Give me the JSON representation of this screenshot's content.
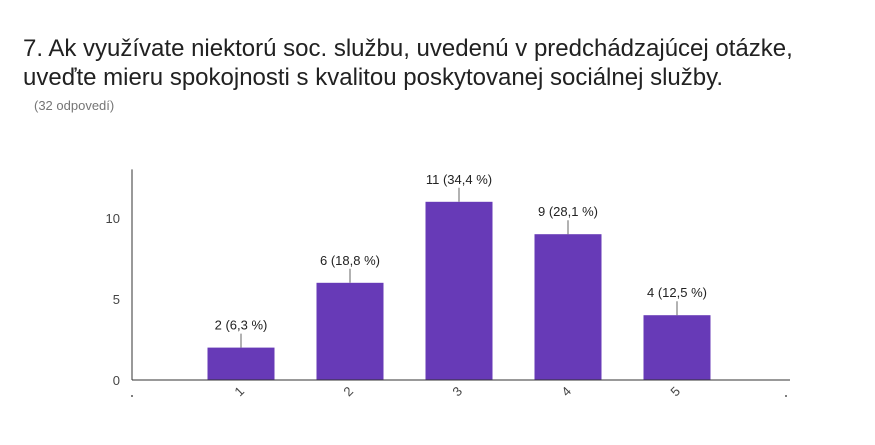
{
  "question": {
    "title": "7. Ak využívate niektorú soc. službu, uvedenú v predchádzajúcej otázke,\nuveďte mieru spokojnosti s kvalitou poskytovanej sociálnej služby.",
    "responses": "(32 odpovedí)"
  },
  "colors": {
    "bar": "#673ab7",
    "axis": "#333333",
    "leader": "#666666"
  },
  "chart_data": {
    "type": "bar",
    "categories": [
      "1",
      "2",
      "3",
      "4",
      "5"
    ],
    "values": [
      2,
      6,
      11,
      9,
      4
    ],
    "data_labels": [
      "2 (6,3 %)",
      "6 (18,8 %)",
      "11 (34,4 %)",
      "9 (28,1 %)",
      "4 (12,5 %)"
    ],
    "y_ticks": [
      "0",
      "5",
      "10"
    ],
    "ylim": [
      0,
      13
    ],
    "xlabel": "",
    "ylabel": "",
    "grid": false,
    "legend": "none"
  }
}
